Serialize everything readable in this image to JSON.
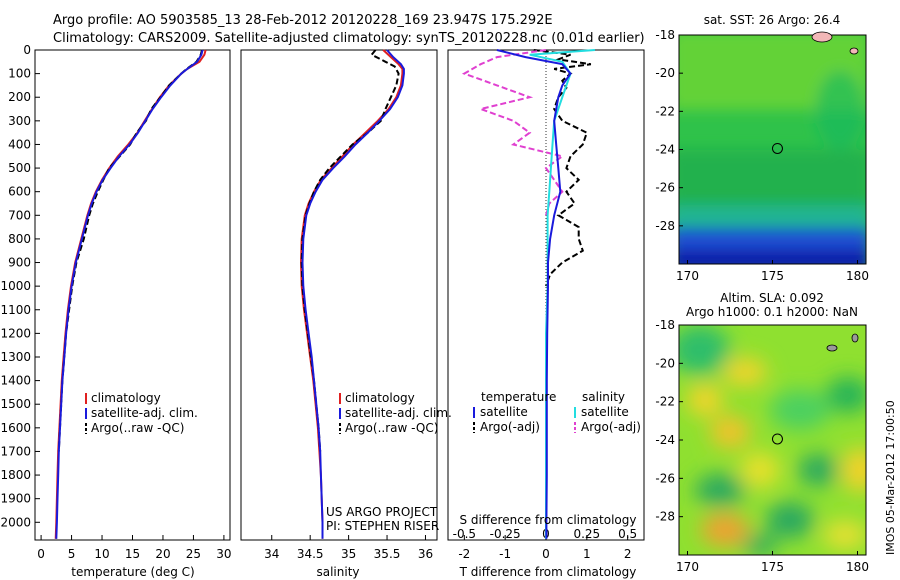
{
  "header": {
    "line1": "Argo profile: AO 5903585_13 28-Feb-2012 20120228_169 23.947S 175.292E",
    "line2": "Climatology: CARS2009. Satellite-adjusted climatology: synTS_20120228.nc (0.01d earlier)"
  },
  "side_label": "IMOS 05-Mar-2012 17:00:50",
  "project": {
    "line1": "US ARGO PROJECT",
    "line2": "PI: STEPHEN RISER"
  },
  "colors": {
    "climatology": "#e02020",
    "satellite": "#1a1adc",
    "argo": "#000000",
    "cyan": "#22dde0",
    "magenta": "#e040d0"
  },
  "chart_data": [
    {
      "type": "line",
      "id": "temperature",
      "xlabel": "temperature (deg C)",
      "ylabel": "",
      "xlim": [
        -1,
        31
      ],
      "ylim": [
        2075,
        0
      ],
      "xticks": [
        0,
        5,
        10,
        15,
        20,
        25,
        30
      ],
      "yticks": [
        0,
        100,
        200,
        300,
        400,
        500,
        600,
        700,
        800,
        900,
        1000,
        1100,
        1200,
        1300,
        1400,
        1500,
        1600,
        1700,
        1800,
        1900,
        2000
      ],
      "legend": [
        "climatology",
        "satellite-adj. clim.",
        "Argo(..raw -QC)"
      ],
      "series": [
        {
          "name": "climatology",
          "depth": [
            0,
            20,
            50,
            80,
            100,
            150,
            200,
            250,
            300,
            350,
            400,
            450,
            500,
            550,
            600,
            650,
            700,
            800,
            900,
            1000,
            1100,
            1200,
            1300,
            1400,
            1500,
            1600,
            1700,
            1800,
            1900,
            2000,
            2070
          ],
          "values": [
            27.0,
            26.8,
            26.0,
            24.0,
            23.0,
            21.0,
            19.5,
            18.2,
            17.0,
            15.8,
            14.3,
            12.6,
            11.2,
            10.0,
            9.0,
            8.2,
            7.6,
            6.6,
            5.6,
            4.9,
            4.4,
            4.0,
            3.7,
            3.4,
            3.2,
            3.0,
            2.8,
            2.7,
            2.6,
            2.5,
            2.4
          ]
        },
        {
          "name": "satellite-adj. clim.",
          "depth": [
            0,
            20,
            50,
            80,
            100,
            150,
            200,
            250,
            300,
            350,
            400,
            450,
            500,
            550,
            600,
            650,
            700,
            800,
            900,
            1000,
            1100,
            1200,
            1300,
            1400,
            1500,
            1600,
            1700,
            1800,
            1900,
            2000,
            2070
          ],
          "values": [
            26.5,
            26.3,
            25.6,
            24.0,
            23.0,
            21.2,
            19.7,
            18.3,
            17.1,
            15.9,
            14.5,
            12.8,
            11.4,
            10.1,
            9.1,
            8.3,
            7.7,
            6.7,
            5.7,
            5.0,
            4.5,
            4.1,
            3.8,
            3.5,
            3.3,
            3.1,
            2.9,
            2.8,
            2.7,
            2.6,
            2.5
          ]
        },
        {
          "name": "Argo(..raw -QC)",
          "depth": [
            0,
            20,
            50,
            80,
            100,
            150,
            200,
            250,
            300,
            350,
            400,
            450,
            500,
            550,
            600,
            650,
            700,
            800,
            900,
            1000,
            1100,
            1200,
            1300,
            1400,
            1500,
            1600,
            1700
          ],
          "values": [
            26.4,
            26.2,
            25.5,
            23.9,
            23.0,
            21.0,
            19.6,
            18.1,
            17.2,
            15.7,
            14.6,
            12.9,
            11.2,
            10.2,
            9.3,
            8.5,
            7.9,
            7.0,
            5.8,
            5.1,
            4.6,
            4.1,
            3.8,
            3.5,
            3.3,
            3.1,
            2.9
          ]
        }
      ]
    },
    {
      "type": "line",
      "id": "salinity",
      "xlabel": "salinity",
      "xlim": [
        33.6,
        36.15
      ],
      "ylim": [
        2075,
        0
      ],
      "xticks": [
        34,
        34.5,
        35,
        35.5,
        36
      ],
      "legend": [
        "climatology",
        "satellite-adj. clim.",
        "Argo(..raw -QC)"
      ],
      "series": [
        {
          "name": "climatology",
          "depth": [
            0,
            30,
            60,
            80,
            100,
            150,
            200,
            250,
            300,
            350,
            400,
            450,
            500,
            550,
            600,
            650,
            700,
            800,
            900,
            1000,
            1100,
            1200,
            1300,
            1400,
            1500,
            1600,
            1700,
            1800,
            1900,
            2000,
            2070
          ],
          "values": [
            35.45,
            35.55,
            35.65,
            35.7,
            35.7,
            35.68,
            35.62,
            35.52,
            35.38,
            35.22,
            35.06,
            34.92,
            34.78,
            34.64,
            34.55,
            34.48,
            34.43,
            34.39,
            34.38,
            34.39,
            34.42,
            34.46,
            34.5,
            34.54,
            34.57,
            34.6,
            34.62,
            34.64,
            34.65,
            34.66,
            34.66
          ]
        },
        {
          "name": "satellite-adj. clim.",
          "depth": [
            0,
            30,
            60,
            80,
            100,
            150,
            200,
            250,
            300,
            350,
            400,
            450,
            500,
            550,
            600,
            650,
            700,
            800,
            900,
            1000,
            1100,
            1200,
            1300,
            1400,
            1500,
            1600,
            1700,
            1800,
            1900,
            2000,
            2070
          ],
          "values": [
            35.5,
            35.58,
            35.68,
            35.72,
            35.72,
            35.7,
            35.64,
            35.54,
            35.4,
            35.25,
            35.09,
            34.95,
            34.8,
            34.66,
            34.57,
            34.5,
            34.45,
            34.41,
            34.4,
            34.41,
            34.44,
            34.48,
            34.52,
            34.55,
            34.58,
            34.61,
            34.63,
            34.64,
            34.65,
            34.66,
            34.66
          ]
        },
        {
          "name": "Argo(..raw -QC)",
          "depth": [
            0,
            20,
            50,
            70,
            100,
            150,
            200,
            250,
            300,
            350,
            400,
            450,
            500,
            550,
            600,
            650,
            700,
            800,
            900,
            1000,
            1100,
            1200,
            1300,
            1400,
            1500,
            1600,
            1700
          ],
          "values": [
            35.35,
            35.3,
            35.48,
            35.6,
            35.65,
            35.62,
            35.55,
            35.48,
            35.42,
            35.25,
            35.05,
            34.9,
            34.75,
            34.63,
            34.55,
            34.49,
            34.44,
            34.4,
            34.39,
            34.4,
            34.43,
            34.47,
            34.51,
            34.55,
            34.58,
            34.61,
            34.63
          ]
        }
      ]
    },
    {
      "type": "line",
      "id": "difference",
      "xlabel": "T difference from climatology",
      "xlabel_top": "S difference from climatology",
      "xlim": [
        -2.4,
        2.4
      ],
      "ylim": [
        2075,
        0
      ],
      "xticks": [
        -2,
        -1,
        0,
        1,
        2
      ],
      "xticks_s": [
        -0.5,
        -0.25,
        0,
        0.25,
        0.5
      ],
      "legend_headers": [
        "temperature",
        "salinity"
      ],
      "legend": [
        "satellite",
        "Argo(-adj)",
        "satellite",
        "Argo(-adj)"
      ],
      "series": [
        {
          "name": "temperature satellite",
          "depth": [
            0,
            30,
            60,
            100,
            150,
            200,
            300,
            400,
            500,
            600,
            700,
            800,
            900,
            1000,
            1200,
            1400,
            1600,
            1800,
            2000,
            2070
          ],
          "values": [
            -1.2,
            -0.5,
            0.4,
            0.6,
            0.4,
            0.3,
            0.2,
            0.25,
            0.3,
            0.35,
            0.2,
            0.1,
            0.05,
            0.05,
            0.03,
            0.02,
            0.02,
            0.02,
            0.01,
            0.01
          ]
        },
        {
          "name": "temperature Argo(-adj)",
          "depth": [
            0,
            20,
            40,
            60,
            80,
            100,
            130,
            160,
            200,
            250,
            300,
            350,
            400,
            450,
            500,
            550,
            600,
            650,
            700,
            750,
            800,
            850,
            900,
            950,
            1000
          ],
          "values": [
            -0.3,
            0.6,
            0.3,
            1.1,
            0.2,
            0.6,
            0.4,
            0.5,
            0.3,
            0.2,
            0.4,
            1.0,
            0.9,
            0.6,
            0.5,
            0.8,
            0.5,
            0.7,
            0.3,
            0.8,
            0.8,
            0.9,
            0.4,
            0.1,
            0.0
          ]
        },
        {
          "name": "salinity satellite",
          "depth": [
            0,
            20,
            50,
            100,
            200,
            300,
            400,
            500,
            600,
            700,
            800,
            900,
            1000,
            1200,
            1400,
            1600,
            1800,
            2000,
            2070
          ],
          "values": [
            0.3,
            -0.1,
            0.1,
            0.15,
            0.1,
            0.05,
            0.04,
            0.03,
            0.02,
            0.01,
            0.01,
            0.01,
            0.01,
            0.0,
            0.0,
            0.0,
            0.0,
            0.0,
            0.0
          ]
        },
        {
          "name": "salinity Argo(-adj)",
          "depth": [
            0,
            30,
            60,
            100,
            150,
            200,
            250,
            300,
            350,
            400,
            450,
            500,
            550,
            600,
            650,
            700
          ],
          "values": [
            0.0,
            -0.3,
            -0.4,
            -0.5,
            -0.3,
            -0.1,
            -0.4,
            -0.2,
            -0.1,
            -0.2,
            0.1,
            0.0,
            0.05,
            0.1,
            0.02,
            0.0
          ]
        }
      ]
    },
    {
      "type": "heatmap",
      "id": "sst_map",
      "title": "sat. SST: 26 Argo: 26.4",
      "xlim": [
        169.5,
        180.5
      ],
      "ylim": [
        -30,
        -18
      ],
      "xticks": [
        170,
        175,
        180
      ],
      "yticks": [
        -18,
        -20,
        -22,
        -24,
        -26,
        -28
      ],
      "marker": {
        "lon": 175.292,
        "lat": -23.947
      }
    },
    {
      "type": "heatmap",
      "id": "sla_map",
      "title_line1": "Altim. SLA: 0.092",
      "title_line2": "Argo h1000: 0.1 h2000: NaN",
      "xlim": [
        169.5,
        180.5
      ],
      "ylim": [
        -30,
        -18
      ],
      "xticks": [
        170,
        175,
        180
      ],
      "yticks": [
        -18,
        -20,
        -22,
        -24,
        -26,
        -28
      ],
      "marker": {
        "lon": 175.292,
        "lat": -23.947
      }
    }
  ]
}
